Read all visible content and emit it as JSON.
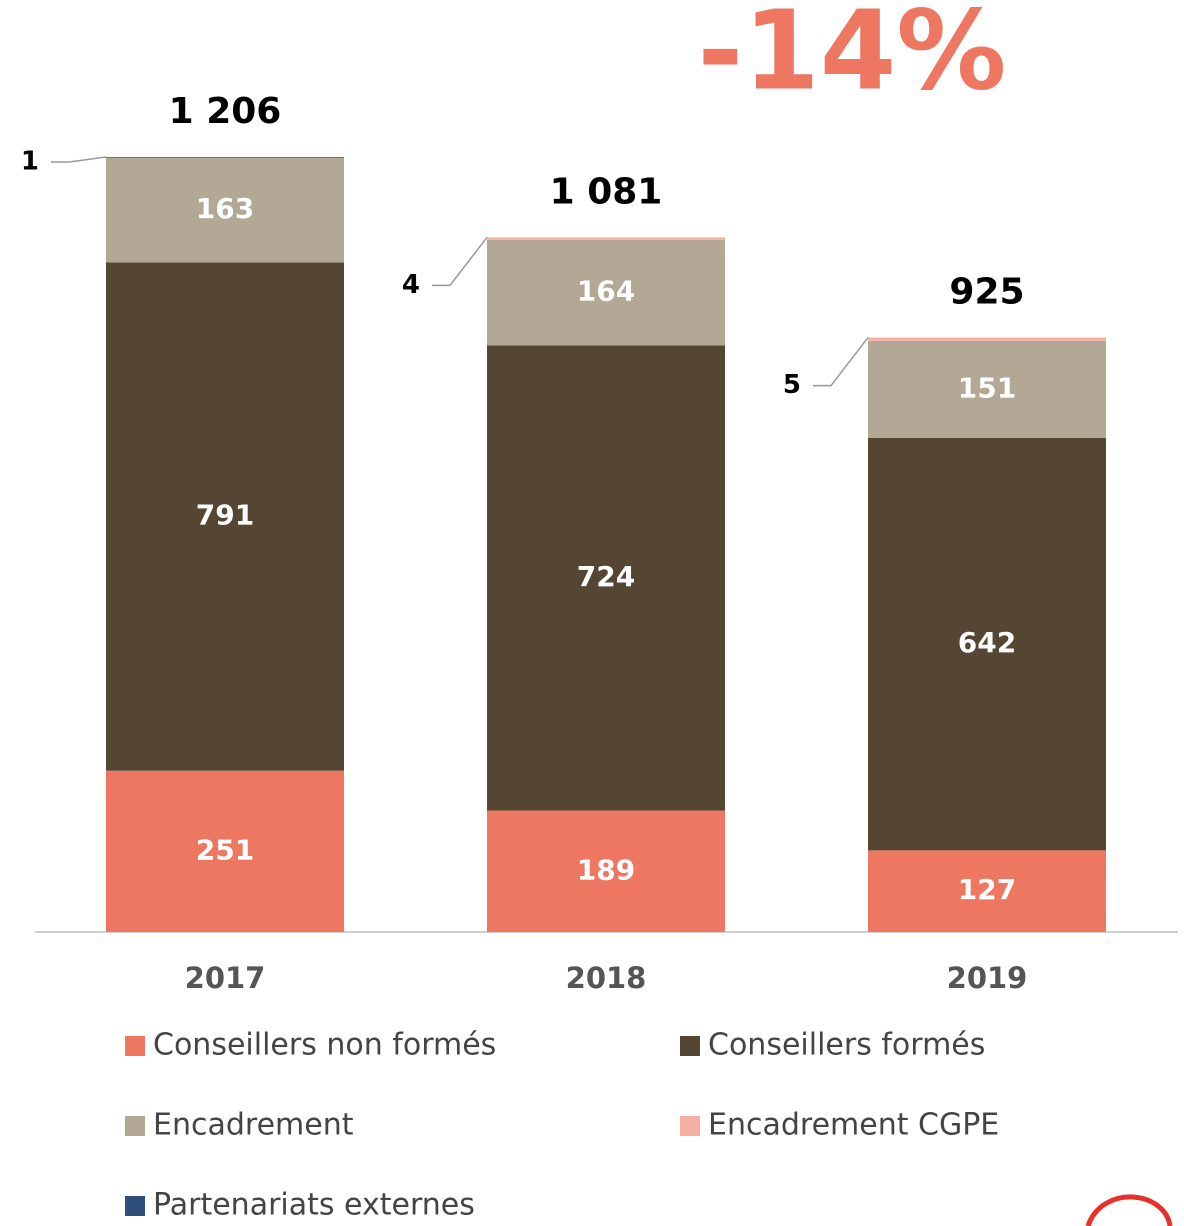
{
  "chart_data": {
    "type": "stacked_bar",
    "annotation": "-14%",
    "categories": [
      "2017",
      "2018",
      "2019"
    ],
    "series": [
      {
        "name": "Conseillers non formés",
        "color": "#ee7762",
        "values": [
          251,
          189,
          127
        ]
      },
      {
        "name": "Conseillers formés",
        "color": "#544632",
        "values": [
          791,
          724,
          642
        ]
      },
      {
        "name": "Encadrement",
        "color": "#b3a796",
        "values": [
          163,
          164,
          151
        ]
      },
      {
        "name": "Encadrement CGPE",
        "color": "#f6b0a2",
        "values": [
          null,
          4,
          5
        ]
      },
      {
        "name": "Partenariats externes",
        "color": "#2f4f7a",
        "values": [
          1,
          null,
          null
        ]
      }
    ],
    "totals": [
      1206,
      1081,
      925
    ],
    "total_labels": [
      "1 206",
      "1 081",
      "925"
    ],
    "ylim": [
      0,
      1206
    ]
  }
}
